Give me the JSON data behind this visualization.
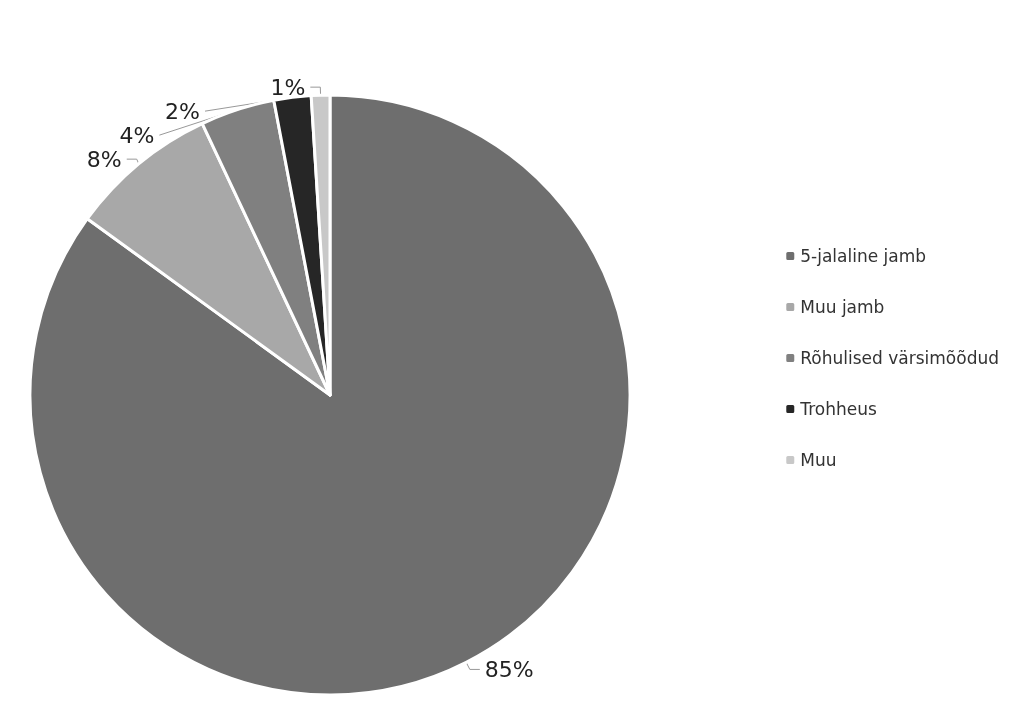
{
  "chart_data": {
    "type": "pie",
    "categories": [
      "5-jalaline jamb",
      "Muu jamb",
      "Rõhulised värsimõõdud",
      "Trohheus",
      "Muu"
    ],
    "values": [
      85,
      8,
      4,
      2,
      1
    ],
    "colors": [
      "#6e6e6e",
      "#a8a8a8",
      "#808080",
      "#262626",
      "#c8c8c8"
    ],
    "value_labels": [
      "85%",
      "8%",
      "4%",
      "2%",
      "1%"
    ],
    "legend": "right"
  }
}
